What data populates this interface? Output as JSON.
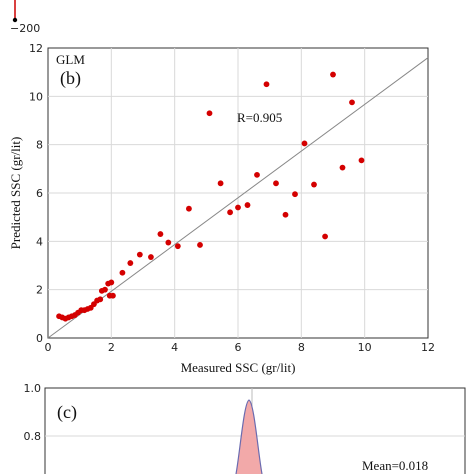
{
  "colors": {
    "points": "#d40000",
    "line": "#888888",
    "grid": "#d9d9d9",
    "fill": "#f2a9a9",
    "curve": "#6b6bb0",
    "top_line": "#cc0000"
  },
  "top_panel": {
    "tick_label": "−200"
  },
  "chart_data": [
    {
      "type": "scatter",
      "panel_label": "(b)",
      "model_label": "GLM",
      "annotation": "R=0.905",
      "xlabel": "Measured SSC (gr/lit)",
      "ylabel": "Predicted SSC (gr/lit)",
      "xlim": [
        0,
        12
      ],
      "ylim": [
        0,
        12
      ],
      "xticks": [
        "0",
        "2",
        "4",
        "6",
        "8",
        "10",
        "12"
      ],
      "yticks": [
        "0",
        "2",
        "4",
        "6",
        "8",
        "10",
        "12"
      ],
      "grid": true,
      "line": {
        "x": [
          0,
          12
        ],
        "y": [
          0,
          11.6
        ]
      },
      "points": [
        [
          0.35,
          0.9
        ],
        [
          0.45,
          0.85
        ],
        [
          0.55,
          0.8
        ],
        [
          0.65,
          0.85
        ],
        [
          0.75,
          0.9
        ],
        [
          0.85,
          0.95
        ],
        [
          0.95,
          1.05
        ],
        [
          1.05,
          1.15
        ],
        [
          1.15,
          1.15
        ],
        [
          1.25,
          1.2
        ],
        [
          1.35,
          1.25
        ],
        [
          1.45,
          1.4
        ],
        [
          1.55,
          1.55
        ],
        [
          1.65,
          1.6
        ],
        [
          1.7,
          1.95
        ],
        [
          1.8,
          2.0
        ],
        [
          1.9,
          2.25
        ],
        [
          2.0,
          2.3
        ],
        [
          1.95,
          1.75
        ],
        [
          2.05,
          1.75
        ],
        [
          2.35,
          2.7
        ],
        [
          2.6,
          3.1
        ],
        [
          2.9,
          3.45
        ],
        [
          3.25,
          3.35
        ],
        [
          3.55,
          4.3
        ],
        [
          3.8,
          3.95
        ],
        [
          4.1,
          3.8
        ],
        [
          4.45,
          5.35
        ],
        [
          4.8,
          3.85
        ],
        [
          5.1,
          9.3
        ],
        [
          5.45,
          6.4
        ],
        [
          5.75,
          5.2
        ],
        [
          6.0,
          5.4
        ],
        [
          6.3,
          5.5
        ],
        [
          6.6,
          6.75
        ],
        [
          6.9,
          10.5
        ],
        [
          7.2,
          6.4
        ],
        [
          7.5,
          5.1
        ],
        [
          7.8,
          5.95
        ],
        [
          8.1,
          8.05
        ],
        [
          8.4,
          6.35
        ],
        [
          8.75,
          4.2
        ],
        [
          9.0,
          10.9
        ],
        [
          9.3,
          7.05
        ],
        [
          9.6,
          9.75
        ],
        [
          9.9,
          7.35
        ]
      ]
    },
    {
      "type": "area",
      "panel_label": "(c)",
      "annotation": "Mean=0.018",
      "ylim_visible": [
        0.7,
        1.0
      ],
      "yticks": [
        "1.0",
        "0.8"
      ]
    }
  ]
}
